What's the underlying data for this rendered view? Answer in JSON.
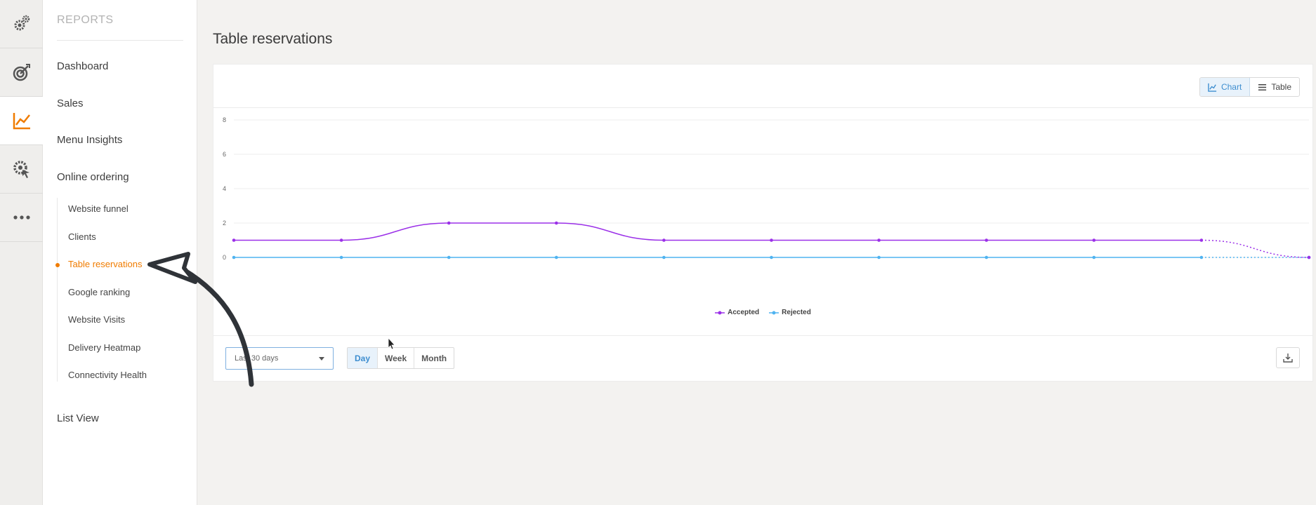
{
  "sidebar": {
    "header": "REPORTS",
    "main_items": [
      "Dashboard",
      "Sales",
      "Menu Insights",
      "Online ordering"
    ],
    "sub_items": [
      "Website funnel",
      "Clients",
      "Table reservations",
      "Google ranking",
      "Website Visits",
      "Delivery Heatmap",
      "Connectivity Health"
    ],
    "active_sub": "Table reservations",
    "bottom_item": "List View"
  },
  "rail": {
    "icons": [
      "gears-icon",
      "target-icon",
      "chart-line-icon",
      "gear-cursor-icon",
      "more-icon"
    ],
    "active": "chart-line-icon"
  },
  "main": {
    "title": "Table reservations",
    "view_toggle": {
      "chart_label": "Chart",
      "table_label": "Table",
      "selected": "Chart"
    },
    "date_range": {
      "value": "Last 30 days"
    },
    "period": {
      "options": [
        "Day",
        "Week",
        "Month"
      ],
      "selected": "Day"
    }
  },
  "chart_data": {
    "type": "line",
    "title": "",
    "xlabel": "",
    "ylabel": "",
    "ylim": [
      0,
      8
    ],
    "y_ticks": [
      "0",
      "2",
      "4",
      "6",
      "8"
    ],
    "x_count": 11,
    "series": [
      {
        "name": "Accepted",
        "values": [
          1,
          1,
          2,
          2,
          1,
          1,
          1,
          1,
          1,
          1,
          0
        ],
        "color": "#9b30e8",
        "last_segment": "dotted"
      },
      {
        "name": "Rejected",
        "values": [
          0,
          0,
          0,
          0,
          0,
          0,
          0,
          0,
          0,
          0,
          0
        ],
        "color": "#4fb3f0",
        "last_segment": "dotted"
      }
    ],
    "legend_position": "bottom-center",
    "grid": true
  },
  "colors": {
    "accent": "#f07c00",
    "selected_blue": "#3e8ed0"
  }
}
